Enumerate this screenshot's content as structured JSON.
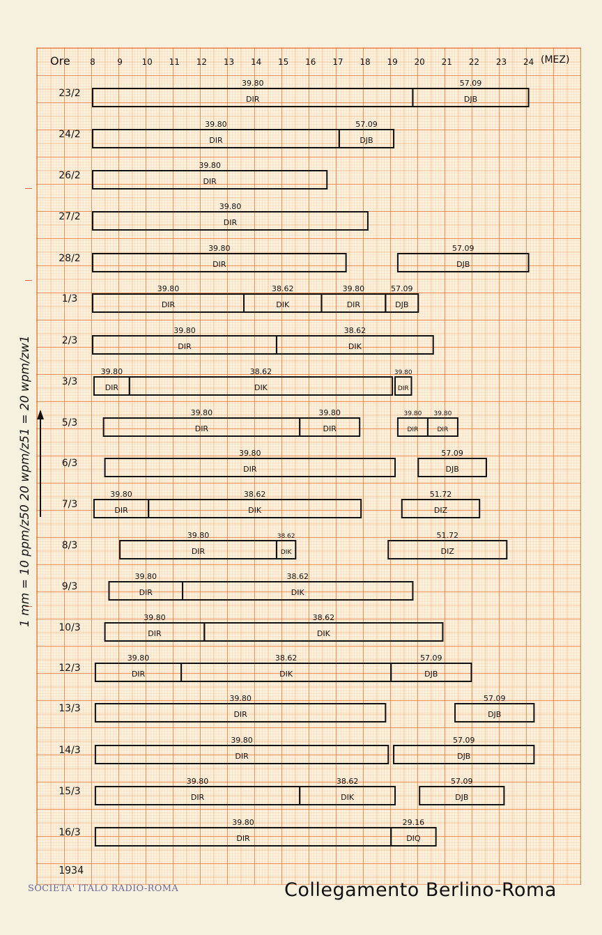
{
  "hours_label": "Ore",
  "unit_label": "(MEZ)",
  "hours": [
    "8",
    "9",
    "10",
    "11",
    "12",
    "13",
    "14",
    "15",
    "16",
    "17",
    "18",
    "19",
    "20",
    "21",
    "22",
    "23",
    "24"
  ],
  "side_note": "1 mm = 10 ppm/z50 20 wpm/z51 = 20 wpm/zw1",
  "year": "1934",
  "stamp": "SOCIETA' ITALO RADIO-ROMA",
  "title": "Collegamento Berlino-Roma",
  "colors": {
    "grid": "#e8782e",
    "ink": "#111111",
    "stamp": "#6b6a9c"
  },
  "chart_data": {
    "type": "gantt",
    "x_unit": "hour (MEZ)",
    "xlim": [
      8,
      24
    ],
    "rows": [
      {
        "date": "23/2",
        "segments": [
          {
            "start": 8.0,
            "end": 19.75,
            "freq": "39.80",
            "station": "DIR"
          },
          {
            "start": 19.75,
            "end": 24.0,
            "freq": "57.09",
            "station": "DJB"
          }
        ]
      },
      {
        "date": "24/2",
        "segments": [
          {
            "start": 8.0,
            "end": 17.05,
            "freq": "39.80",
            "station": "DIR"
          },
          {
            "start": 17.05,
            "end": 19.05,
            "freq": "57.09",
            "station": "DJB"
          }
        ]
      },
      {
        "date": "26/2",
        "segments": [
          {
            "start": 8.0,
            "end": 16.6,
            "freq": "39.80",
            "station": "DIR"
          }
        ]
      },
      {
        "date": "27/2",
        "segments": [
          {
            "start": 8.0,
            "end": 18.1,
            "freq": "39.80",
            "station": "DIR"
          }
        ]
      },
      {
        "date": "28/2",
        "segments": [
          {
            "start": 8.0,
            "end": 17.3,
            "freq": "39.80",
            "station": "DIR"
          },
          {
            "start": 19.2,
            "end": 24.0,
            "freq": "57.09",
            "station": "DJB"
          }
        ]
      },
      {
        "date": "1/3",
        "segments": [
          {
            "start": 8.0,
            "end": 13.55,
            "freq": "39.80",
            "station": "DIR"
          },
          {
            "start": 13.55,
            "end": 16.4,
            "freq": "38.62",
            "station": "DIK"
          },
          {
            "start": 16.4,
            "end": 18.75,
            "freq": "39.80",
            "station": "DIR"
          },
          {
            "start": 18.75,
            "end": 19.95,
            "freq": "57.09",
            "station": "DJB"
          }
        ]
      },
      {
        "date": "2/3",
        "segments": [
          {
            "start": 8.0,
            "end": 14.75,
            "freq": "39.80",
            "station": "DIR"
          },
          {
            "start": 14.75,
            "end": 20.5,
            "freq": "38.62",
            "station": "DIK"
          }
        ]
      },
      {
        "date": "3/3",
        "segments": [
          {
            "start": 8.05,
            "end": 9.35,
            "freq": "39.80",
            "station": "DIR"
          },
          {
            "start": 9.35,
            "end": 19.0,
            "freq": "38.62",
            "station": "DIK"
          },
          {
            "start": 19.1,
            "end": 19.7,
            "freq": "39.80",
            "station": "DIR"
          }
        ]
      },
      {
        "date": "5/3",
        "segments": [
          {
            "start": 8.4,
            "end": 15.6,
            "freq": "39.80",
            "station": "DIR"
          },
          {
            "start": 15.6,
            "end": 17.8,
            "freq": "39.80",
            "station": "DIR"
          },
          {
            "start": 19.2,
            "end": 20.3,
            "freq": "39.80",
            "station": "DIR"
          },
          {
            "start": 20.3,
            "end": 21.4,
            "freq": "39.80",
            "station": "DIR"
          }
        ]
      },
      {
        "date": "6/3",
        "segments": [
          {
            "start": 8.45,
            "end": 19.1,
            "freq": "39.80",
            "station": "DIR"
          },
          {
            "start": 19.95,
            "end": 22.45,
            "freq": "57.09",
            "station": "DJB"
          }
        ]
      },
      {
        "date": "7/3",
        "segments": [
          {
            "start": 8.05,
            "end": 10.05,
            "freq": "39.80",
            "station": "DIR"
          },
          {
            "start": 10.05,
            "end": 17.85,
            "freq": "38.62",
            "station": "DIK"
          },
          {
            "start": 19.35,
            "end": 22.2,
            "freq": "51.72",
            "station": "DIZ"
          }
        ]
      },
      {
        "date": "8/3",
        "segments": [
          {
            "start": 9.0,
            "end": 14.75,
            "freq": "39.80",
            "station": "DIR"
          },
          {
            "start": 14.75,
            "end": 15.45,
            "freq": "38.62",
            "station": "DIK"
          },
          {
            "start": 18.85,
            "end": 23.2,
            "freq": "51.72",
            "station": "DIZ"
          }
        ]
      },
      {
        "date": "9/3",
        "segments": [
          {
            "start": 8.6,
            "end": 11.3,
            "freq": "39.80",
            "station": "DIR"
          },
          {
            "start": 11.3,
            "end": 19.75,
            "freq": "38.62",
            "station": "DIK"
          }
        ]
      },
      {
        "date": "10/3",
        "segments": [
          {
            "start": 8.45,
            "end": 12.1,
            "freq": "39.80",
            "station": "DIR"
          },
          {
            "start": 12.1,
            "end": 20.85,
            "freq": "38.62",
            "station": "DIK"
          }
        ]
      },
      {
        "date": "12/3",
        "segments": [
          {
            "start": 8.1,
            "end": 11.25,
            "freq": "39.80",
            "station": "DIR"
          },
          {
            "start": 11.25,
            "end": 18.95,
            "freq": "38.62",
            "station": "DIK"
          },
          {
            "start": 18.95,
            "end": 21.9,
            "freq": "57.09",
            "station": "DJB"
          }
        ]
      },
      {
        "date": "13/3",
        "segments": [
          {
            "start": 8.1,
            "end": 18.75,
            "freq": "39.80",
            "station": "DIR"
          },
          {
            "start": 21.3,
            "end": 24.2,
            "freq": "57.09",
            "station": "DJB"
          }
        ]
      },
      {
        "date": "14/3",
        "segments": [
          {
            "start": 8.1,
            "end": 18.85,
            "freq": "39.80",
            "station": "DIR"
          },
          {
            "start": 19.05,
            "end": 24.2,
            "freq": "57.09",
            "station": "DJB"
          }
        ]
      },
      {
        "date": "15/3",
        "segments": [
          {
            "start": 8.1,
            "end": 15.6,
            "freq": "39.80",
            "station": "DIR"
          },
          {
            "start": 15.6,
            "end": 19.1,
            "freq": "38.62",
            "station": "DIK"
          },
          {
            "start": 20.0,
            "end": 23.1,
            "freq": "57.09",
            "station": "DJB"
          }
        ]
      },
      {
        "date": "16/3",
        "segments": [
          {
            "start": 8.1,
            "end": 18.95,
            "freq": "39.80",
            "station": "DIR"
          },
          {
            "start": 18.95,
            "end": 20.6,
            "freq": "29.16",
            "station": "DIQ"
          }
        ]
      }
    ]
  }
}
